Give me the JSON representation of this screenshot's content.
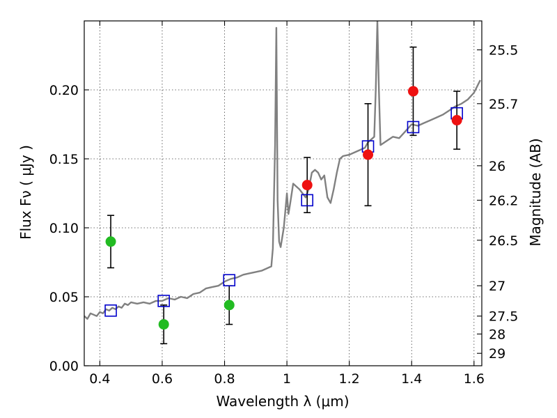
{
  "chart_data": {
    "type": "scatter",
    "xlabel": "Wavelength  λ (μm)",
    "ylabel": "Flux  Fν  ( μJy )",
    "y2label": "Magnitude (AB)",
    "xlim": [
      0.35,
      1.625
    ],
    "ylim": [
      0.0,
      0.25
    ],
    "x_ticks": [
      0.4,
      0.6,
      0.8,
      1.0,
      1.2,
      1.4,
      1.6
    ],
    "x_tick_labels": [
      "0.4",
      "0.6",
      "0.8",
      "1",
      "1.2",
      "1.4",
      "1.6"
    ],
    "y_ticks": [
      0.0,
      0.05,
      0.1,
      0.15,
      0.2
    ],
    "y_tick_labels": [
      "0.00",
      "0.05",
      "0.10",
      "0.15",
      "0.20"
    ],
    "mag_ticks": [
      {
        "label": "25.5",
        "flux": 0.229
      },
      {
        "label": "25.7",
        "flux": 0.19
      },
      {
        "label": "26",
        "flux": 0.145
      },
      {
        "label": "26.2",
        "flux": 0.12
      },
      {
        "label": "26.5",
        "flux": 0.091
      },
      {
        "label": "27",
        "flux": 0.058
      },
      {
        "label": "27.5",
        "flux": 0.036
      },
      {
        "label": "28",
        "flux": 0.023
      },
      {
        "label": "29",
        "flux": 0.009
      }
    ],
    "grid": true,
    "colors": {
      "model_line": "#808080",
      "green_points": "#22bb22",
      "red_points": "#ee1111",
      "model_boxes": "#0000cc",
      "error_bars": "#000000"
    },
    "model_spectrum": [
      [
        0.35,
        0.036
      ],
      [
        0.36,
        0.034
      ],
      [
        0.37,
        0.038
      ],
      [
        0.38,
        0.037
      ],
      [
        0.39,
        0.036
      ],
      [
        0.4,
        0.039
      ],
      [
        0.41,
        0.038
      ],
      [
        0.42,
        0.041
      ],
      [
        0.43,
        0.04
      ],
      [
        0.44,
        0.042
      ],
      [
        0.45,
        0.041
      ],
      [
        0.46,
        0.043
      ],
      [
        0.47,
        0.042
      ],
      [
        0.48,
        0.045
      ],
      [
        0.49,
        0.044
      ],
      [
        0.5,
        0.046
      ],
      [
        0.52,
        0.045
      ],
      [
        0.54,
        0.046
      ],
      [
        0.56,
        0.045
      ],
      [
        0.58,
        0.047
      ],
      [
        0.6,
        0.047
      ],
      [
        0.62,
        0.049
      ],
      [
        0.64,
        0.048
      ],
      [
        0.66,
        0.05
      ],
      [
        0.68,
        0.049
      ],
      [
        0.7,
        0.052
      ],
      [
        0.72,
        0.053
      ],
      [
        0.74,
        0.056
      ],
      [
        0.76,
        0.057
      ],
      [
        0.78,
        0.058
      ],
      [
        0.8,
        0.061
      ],
      [
        0.82,
        0.063
      ],
      [
        0.84,
        0.064
      ],
      [
        0.86,
        0.066
      ],
      [
        0.88,
        0.067
      ],
      [
        0.9,
        0.068
      ],
      [
        0.92,
        0.069
      ],
      [
        0.94,
        0.071
      ],
      [
        0.95,
        0.072
      ],
      [
        0.955,
        0.085
      ],
      [
        0.962,
        0.16
      ],
      [
        0.966,
        0.245
      ],
      [
        0.97,
        0.12
      ],
      [
        0.975,
        0.09
      ],
      [
        0.98,
        0.086
      ],
      [
        0.99,
        0.1
      ],
      [
        1.0,
        0.125
      ],
      [
        1.005,
        0.11
      ],
      [
        1.01,
        0.117
      ],
      [
        1.02,
        0.132
      ],
      [
        1.03,
        0.13
      ],
      [
        1.04,
        0.128
      ],
      [
        1.05,
        0.125
      ],
      [
        1.06,
        0.122
      ],
      [
        1.07,
        0.128
      ],
      [
        1.08,
        0.14
      ],
      [
        1.09,
        0.142
      ],
      [
        1.1,
        0.14
      ],
      [
        1.11,
        0.135
      ],
      [
        1.12,
        0.138
      ],
      [
        1.13,
        0.122
      ],
      [
        1.14,
        0.118
      ],
      [
        1.15,
        0.128
      ],
      [
        1.16,
        0.14
      ],
      [
        1.17,
        0.15
      ],
      [
        1.18,
        0.152
      ],
      [
        1.2,
        0.153
      ],
      [
        1.22,
        0.155
      ],
      [
        1.24,
        0.157
      ],
      [
        1.25,
        0.158
      ],
      [
        1.26,
        0.162
      ],
      [
        1.27,
        0.164
      ],
      [
        1.28,
        0.166
      ],
      [
        1.285,
        0.2
      ],
      [
        1.29,
        0.25
      ],
      [
        1.295,
        0.2
      ],
      [
        1.3,
        0.16
      ],
      [
        1.32,
        0.163
      ],
      [
        1.34,
        0.166
      ],
      [
        1.36,
        0.165
      ],
      [
        1.38,
        0.17
      ],
      [
        1.4,
        0.175
      ],
      [
        1.42,
        0.174
      ],
      [
        1.44,
        0.176
      ],
      [
        1.46,
        0.178
      ],
      [
        1.48,
        0.18
      ],
      [
        1.5,
        0.182
      ],
      [
        1.52,
        0.185
      ],
      [
        1.54,
        0.188
      ],
      [
        1.56,
        0.19
      ],
      [
        1.58,
        0.193
      ],
      [
        1.6,
        0.198
      ],
      [
        1.62,
        0.207
      ]
    ],
    "green_points": [
      {
        "x": 0.435,
        "y": 0.09,
        "err_low": 0.071,
        "err_high": 0.109
      },
      {
        "x": 0.605,
        "y": 0.03,
        "err_low": 0.016,
        "err_high": 0.044
      },
      {
        "x": 0.815,
        "y": 0.044,
        "err_low": 0.03,
        "err_high": 0.058
      }
    ],
    "red_points": [
      {
        "x": 1.065,
        "y": 0.131,
        "err_low": 0.111,
        "err_high": 0.151
      },
      {
        "x": 1.26,
        "y": 0.153,
        "err_low": 0.116,
        "err_high": 0.19
      },
      {
        "x": 1.405,
        "y": 0.199,
        "err_low": 0.167,
        "err_high": 0.231
      },
      {
        "x": 1.545,
        "y": 0.178,
        "err_low": 0.157,
        "err_high": 0.199
      }
    ],
    "model_boxes": [
      {
        "x": 0.435,
        "y": 0.04
      },
      {
        "x": 0.605,
        "y": 0.047
      },
      {
        "x": 0.815,
        "y": 0.062
      },
      {
        "x": 1.065,
        "y": 0.12
      },
      {
        "x": 1.26,
        "y": 0.159
      },
      {
        "x": 1.405,
        "y": 0.173
      },
      {
        "x": 1.545,
        "y": 0.183
      }
    ]
  }
}
